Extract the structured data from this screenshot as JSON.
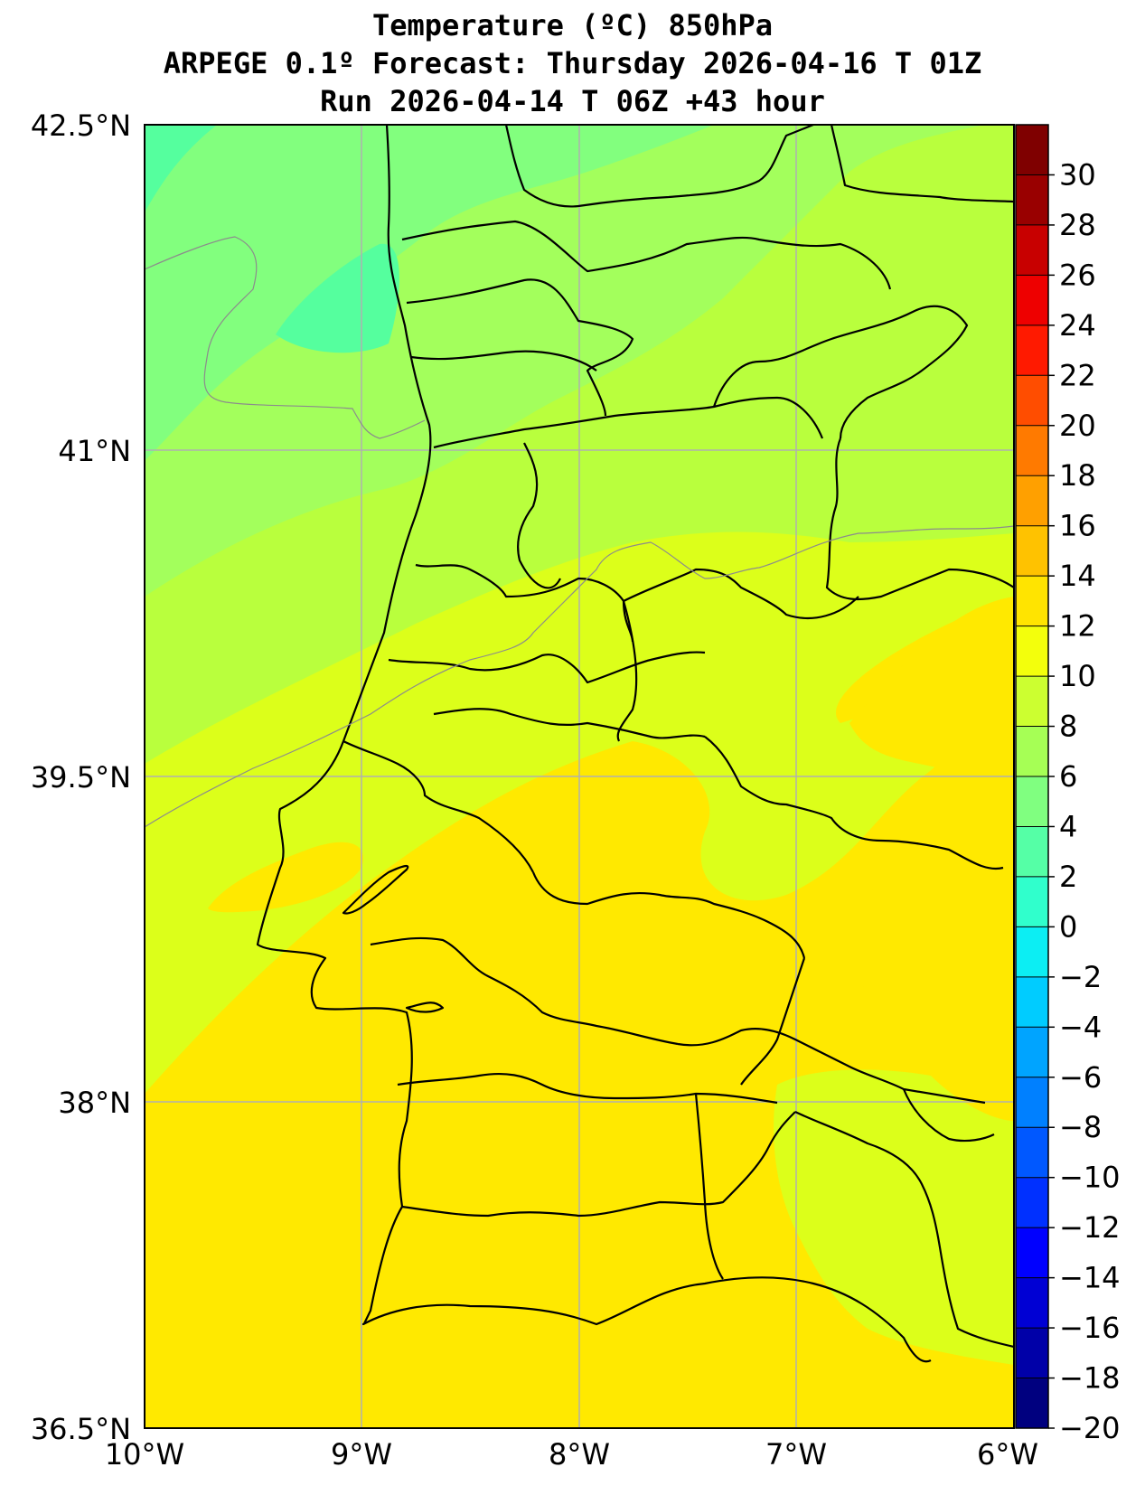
{
  "title": {
    "line1": "Temperature (ºC) 850hPa",
    "line2": "ARPEGE 0.1º Forecast: Thursday 2026-04-16 T 01Z",
    "line3": "Run 2026-04-14 T 06Z +43 hour"
  },
  "map": {
    "lat_labels": [
      "42.5°N",
      "41°N",
      "39.5°N",
      "38°N",
      "36.5°N"
    ],
    "lon_labels": [
      "10°W",
      "9°W",
      "8°W",
      "7°W",
      "6°W"
    ]
  },
  "colorbar": {
    "ticks": [
      "30",
      "28",
      "26",
      "24",
      "22",
      "20",
      "18",
      "16",
      "14",
      "12",
      "10",
      "8",
      "6",
      "4",
      "2",
      "0",
      "−2",
      "−4",
      "−6",
      "−8",
      "−10",
      "−12",
      "−14",
      "−16",
      "−18",
      "−20"
    ],
    "bands": [
      "#7f0000",
      "#990000",
      "#c80000",
      "#ee0000",
      "#ff1a00",
      "#ff4d00",
      "#ff7a00",
      "#ffa000",
      "#ffc200",
      "#ffe400",
      "#f3ff0c",
      "#ccff30",
      "#a6ff55",
      "#80ff80",
      "#55ffa6",
      "#30ffcc",
      "#0ceef3",
      "#00ccff",
      "#00a4ff",
      "#0080ff",
      "#0058ff",
      "#0030ff",
      "#0000ff",
      "#0000d4",
      "#0000a8",
      "#00007f"
    ]
  }
}
